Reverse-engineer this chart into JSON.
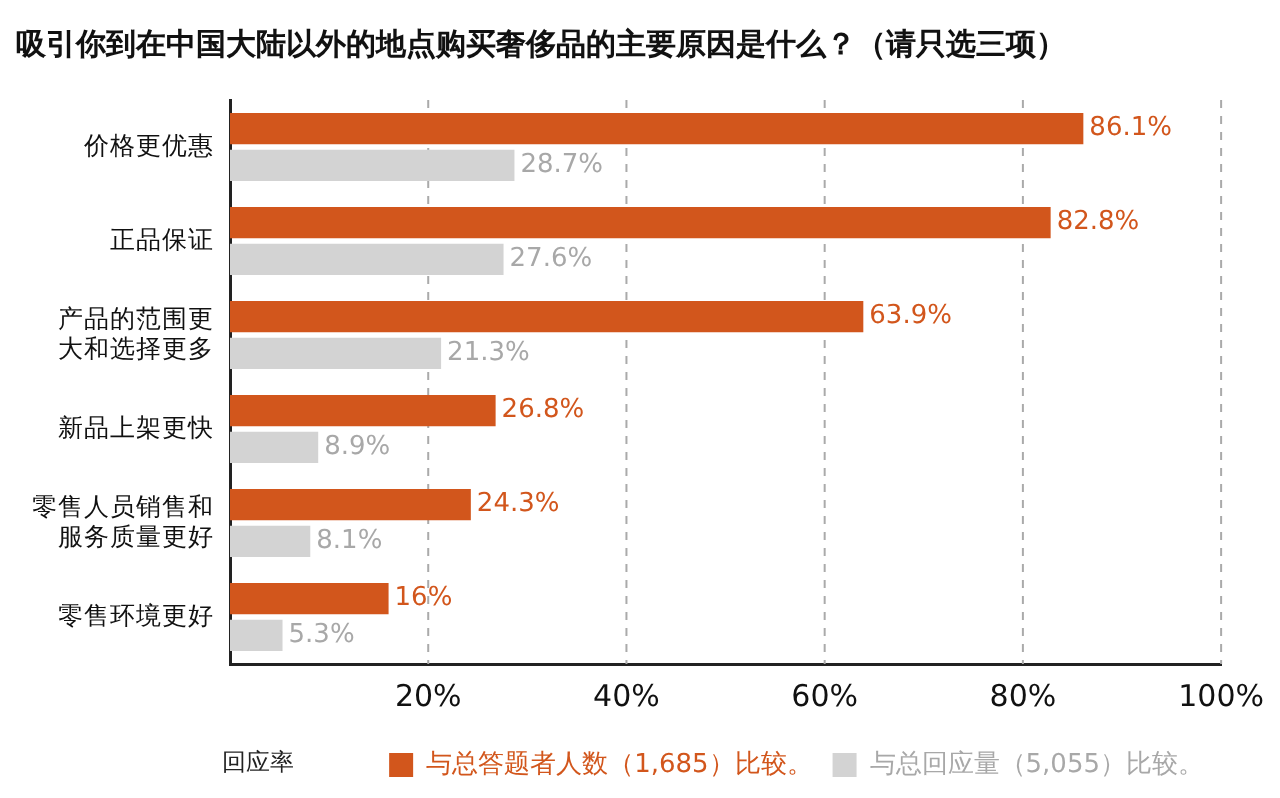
{
  "chart_data": {
    "type": "bar",
    "orientation": "horizontal",
    "title": "吸引你到在中国大陆以外的地点购买奢侈品的主要原因是什么？（请只选三项）",
    "categories": [
      "价格更优惠",
      "正品保证",
      "产品的范围更大和选择更多",
      "新品上架更快",
      "零售人员销售和服务质量更好",
      "零售环境更好"
    ],
    "series": [
      {
        "name": "与总答题者人数（1,685）比较。",
        "color": "#d2561c",
        "values": [
          86.1,
          82.8,
          63.9,
          26.8,
          24.3,
          16
        ],
        "value_labels": [
          "86.1%",
          "82.8%",
          "63.9%",
          "26.8%",
          "24.3%",
          "16%"
        ]
      },
      {
        "name": "与总回应量（5,055）比较。",
        "color": "#d3d3d3",
        "values": [
          28.7,
          27.6,
          21.3,
          8.9,
          8.1,
          5.3
        ],
        "value_labels": [
          "28.7%",
          "27.6%",
          "21.3%",
          "8.9%",
          "8.1%",
          "5.3%"
        ]
      }
    ],
    "xlabel": "回应率",
    "xlim": [
      0,
      100
    ],
    "xticks": [
      {
        "value": 20,
        "label": "20%"
      },
      {
        "value": 40,
        "label": "40%"
      },
      {
        "value": 60,
        "label": "60%"
      },
      {
        "value": 80,
        "label": "80%"
      },
      {
        "value": 100,
        "label": "100%"
      }
    ],
    "grid": "x",
    "line_style": "dashed",
    "legend": "bottom"
  }
}
